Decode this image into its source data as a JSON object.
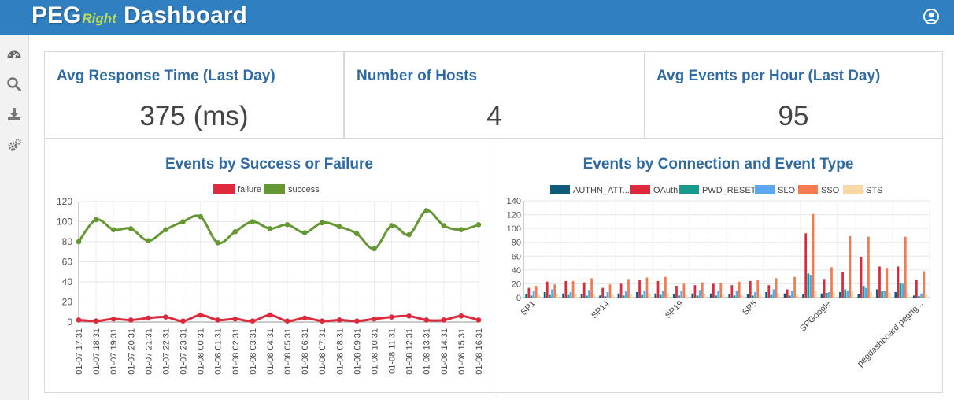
{
  "header": {
    "brand_main": "PEG",
    "brand_sub": "Right",
    "title": "Dashboard"
  },
  "nav": {
    "icons": [
      "dashboard-icon",
      "search-icon",
      "download-icon",
      "settings-icon"
    ]
  },
  "kpis": [
    {
      "title": "Avg Response Time (Last Day)",
      "value": "375 (ms)"
    },
    {
      "title": "Number of Hosts",
      "value": "4"
    },
    {
      "title": "Avg Events per Hour (Last Day)",
      "value": "95"
    }
  ],
  "colors": {
    "header": "#2f7fc1",
    "accent_text": "#2f6aa3",
    "failure": "#dc2a3c",
    "success": "#659733",
    "AUTHN_ATT": "#0d5c7d",
    "OAuth": "#dc2a3c",
    "PWD_RESET": "#179a8c",
    "SLO": "#5ba7ee",
    "SSO": "#f57a4c",
    "STS": "#f5d8a3"
  },
  "chart_data": [
    {
      "type": "line",
      "title": "Events by Success or Failure",
      "categories": [
        "01-07 17:31",
        "01-07 18:31",
        "01-07 19:31",
        "01-07 20:31",
        "01-07 21:31",
        "01-07 22:31",
        "01-07 23:31",
        "01-08 00:31",
        "01-08 01:31",
        "01-08 02:31",
        "01-08 03:31",
        "01-08 04:31",
        "01-08 05:31",
        "01-08 06:31",
        "01-08 07:31",
        "01-08 08:31",
        "01-08 09:31",
        "01-08 10:31",
        "01-08 11:31",
        "01-08 12:31",
        "01-08 13:31",
        "01-08 14:31",
        "01-08 15:31",
        "01-08 16:31"
      ],
      "series": [
        {
          "name": "failure",
          "color": "#dc2a3c",
          "values": [
            2,
            1,
            3,
            2,
            4,
            5,
            1,
            7,
            2,
            3,
            1,
            7,
            1,
            4,
            1,
            2,
            1,
            3,
            5,
            6,
            2,
            2,
            6,
            2
          ]
        },
        {
          "name": "success",
          "color": "#659733",
          "values": [
            80,
            102,
            92,
            93,
            81,
            92,
            100,
            105,
            79,
            90,
            100,
            93,
            97,
            89,
            99,
            95,
            88,
            73,
            96,
            87,
            111,
            96,
            92,
            97
          ]
        }
      ],
      "ylim": [
        0,
        120
      ],
      "yticks": [
        0,
        20,
        40,
        60,
        80,
        100,
        120
      ],
      "legend": "top"
    },
    {
      "type": "bar",
      "title": "Events by Connection and Event Type",
      "legend_labels": [
        "AUTHN_ATT...",
        "OAuth",
        "PWD_RESET",
        "SLO",
        "SSO",
        "STS"
      ],
      "x_tick_labels": [
        "SP1",
        "SP14",
        "SP19",
        "SP5",
        "SPGoogle",
        "pegdashboard.pegrig..."
      ],
      "groups": 22,
      "series": [
        {
          "name": "AUTHN_ATT...",
          "color": "#0d5c7d",
          "values": [
            5,
            8,
            6,
            5,
            3,
            6,
            8,
            6,
            5,
            6,
            6,
            5,
            5,
            8,
            6,
            5,
            6,
            8,
            5,
            12,
            8,
            3
          ]
        },
        {
          "name": "OAuth",
          "color": "#dc2a3c",
          "values": [
            14,
            23,
            24,
            22,
            14,
            20,
            25,
            24,
            17,
            18,
            20,
            18,
            24,
            18,
            12,
            93,
            27,
            37,
            59,
            45,
            45,
            26
          ]
        },
        {
          "name": "PWD_RESET",
          "color": "#179a8c",
          "values": [
            3,
            4,
            4,
            3,
            2,
            3,
            4,
            4,
            3,
            3,
            3,
            3,
            3,
            4,
            3,
            35,
            7,
            12,
            17,
            9,
            21,
            2
          ]
        },
        {
          "name": "SLO",
          "color": "#5ba7ee",
          "values": [
            9,
            12,
            8,
            11,
            8,
            9,
            10,
            10,
            9,
            11,
            9,
            10,
            8,
            12,
            10,
            33,
            8,
            10,
            14,
            10,
            20,
            6
          ]
        },
        {
          "name": "SSO",
          "color": "#f57a4c",
          "values": [
            17,
            19,
            24,
            28,
            19,
            27,
            29,
            30,
            20,
            22,
            21,
            23,
            25,
            28,
            30,
            121,
            44,
            89,
            88,
            43,
            88,
            38
          ]
        },
        {
          "name": "STS",
          "color": "#f5d8a3",
          "values": [
            4,
            6,
            5,
            5,
            4,
            5,
            6,
            6,
            4,
            5,
            5,
            4,
            5,
            6,
            5,
            10,
            8,
            9,
            8,
            8,
            6,
            5
          ]
        }
      ],
      "ylim": [
        0,
        140
      ],
      "yticks": [
        0,
        20,
        40,
        60,
        80,
        100,
        120,
        140
      ],
      "legend": "top"
    }
  ]
}
